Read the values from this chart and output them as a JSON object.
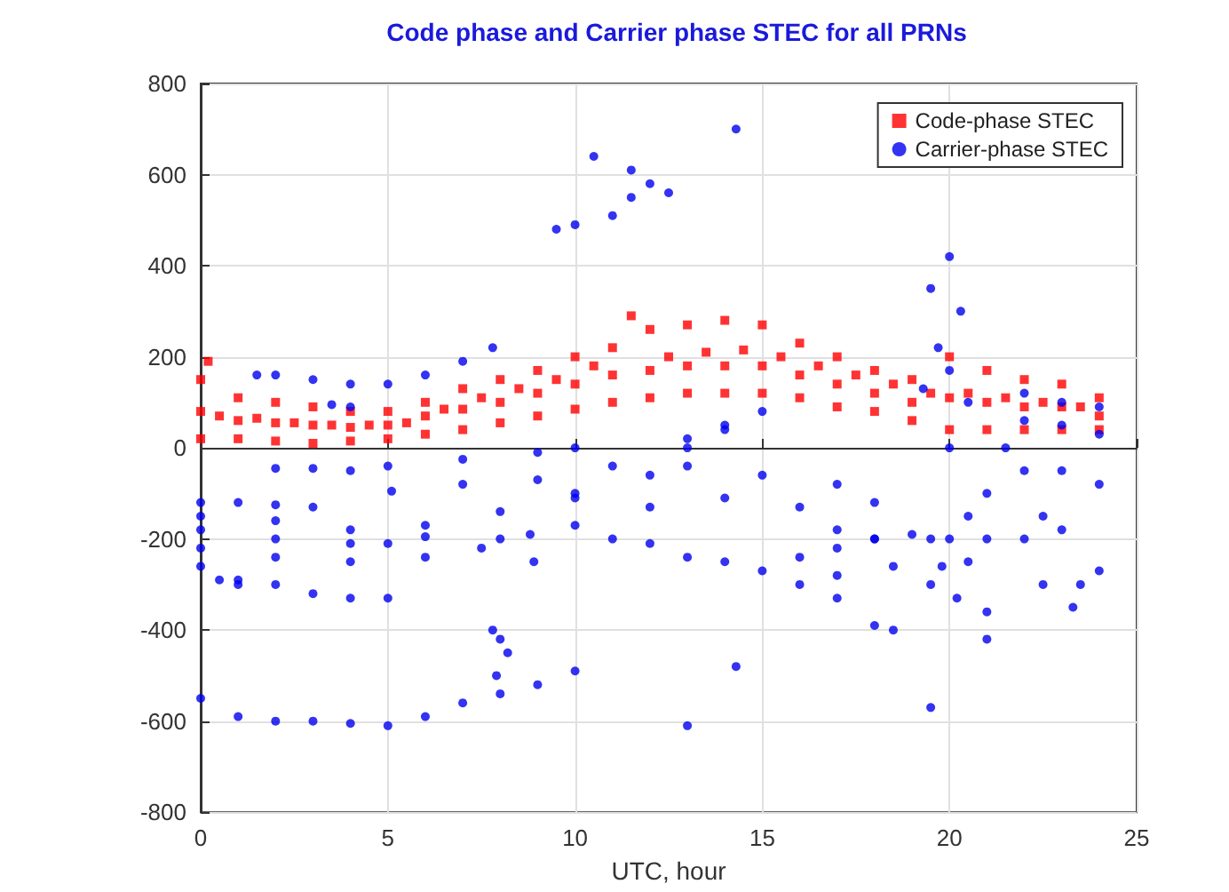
{
  "chart_data": {
    "type": "scatter",
    "title": "Code phase and Carrier phase STEC for all PRNs",
    "xlabel": "UTC, hour",
    "xlim": [
      0,
      25
    ],
    "xticks": [
      0,
      5,
      10,
      15,
      20,
      25
    ],
    "ylim": [
      -800,
      800
    ],
    "yticks": [
      -800,
      -600,
      -400,
      -200,
      0,
      200,
      400,
      600,
      800
    ],
    "grid": true,
    "legend": "top right",
    "series": [
      {
        "name": "Code-phase STEC",
        "color": "#ff0000",
        "marker": "square",
        "x": [
          0,
          0,
          0,
          0.2,
          1,
          1,
          1,
          2,
          2,
          2,
          3,
          3,
          3,
          4,
          4,
          4,
          5,
          5,
          5,
          6,
          6,
          6,
          7,
          7,
          7,
          8,
          8,
          8,
          9,
          9,
          9,
          10,
          10,
          10,
          11,
          11,
          11,
          11.5,
          12,
          12,
          12,
          13,
          13,
          13,
          14,
          14,
          14,
          15,
          15,
          15,
          16,
          16,
          16,
          17,
          17,
          17,
          18,
          18,
          18,
          19,
          19,
          19,
          20,
          20,
          20,
          21,
          21,
          21,
          22,
          22,
          22,
          23,
          23,
          23,
          24,
          24,
          24,
          0.5,
          1.5,
          2.5,
          3.5,
          4.5,
          5.5,
          6.5,
          7.5,
          8.5,
          9.5,
          10.5,
          12.5,
          13.5,
          14.5,
          15.5,
          16.5,
          17.5,
          18.5,
          19.5,
          20.5,
          21.5,
          22.5,
          23.5
        ],
        "values": [
          20,
          80,
          150,
          190,
          20,
          60,
          110,
          15,
          55,
          100,
          10,
          50,
          90,
          15,
          45,
          80,
          20,
          50,
          80,
          30,
          70,
          100,
          40,
          85,
          130,
          55,
          100,
          150,
          70,
          120,
          170,
          85,
          140,
          200,
          100,
          160,
          220,
          290,
          110,
          170,
          260,
          120,
          180,
          270,
          120,
          180,
          280,
          120,
          180,
          270,
          110,
          160,
          230,
          90,
          140,
          200,
          80,
          120,
          170,
          60,
          100,
          150,
          40,
          110,
          200,
          40,
          100,
          170,
          40,
          90,
          150,
          40,
          90,
          140,
          40,
          70,
          110,
          70,
          65,
          55,
          50,
          50,
          55,
          85,
          110,
          130,
          150,
          180,
          200,
          210,
          215,
          200,
          180,
          160,
          140,
          120,
          120,
          110,
          100,
          90
        ]
      },
      {
        "name": "Carrier-phase STEC",
        "color": "#0000ee",
        "marker": "circle",
        "x": [
          9.5,
          10,
          11,
          11.5,
          12,
          12.5,
          10.5,
          11.5,
          14.3,
          1.5,
          2,
          3,
          4,
          5,
          6,
          7,
          7.8,
          3.5,
          4,
          0,
          1,
          2,
          3,
          4,
          5,
          6,
          7,
          8,
          9,
          10,
          0,
          1,
          2,
          3,
          0,
          2,
          4,
          6,
          8,
          10,
          12,
          13,
          14,
          15,
          2,
          3,
          4,
          5,
          7,
          9,
          10,
          5.1,
          7,
          9,
          11,
          13,
          14,
          0,
          2,
          4,
          5,
          6,
          0,
          2,
          4,
          6,
          7.5,
          8,
          0,
          1,
          2,
          3,
          4,
          5,
          0.5,
          1,
          10,
          12,
          14,
          16,
          17,
          18,
          18.5,
          11,
          13,
          15,
          17,
          18.5,
          19.5,
          20,
          12,
          14,
          16,
          17,
          18,
          10,
          13,
          15,
          17,
          18,
          16,
          17,
          18,
          19,
          8.8,
          8.9,
          7.8,
          8,
          8.2,
          7.9,
          13,
          14.3,
          19.5,
          21,
          21,
          19.5,
          20,
          20.3,
          19.7,
          20,
          19.3,
          20.5,
          20,
          20.5,
          21,
          20.5,
          21,
          22,
          22.5,
          23,
          24,
          23.5,
          22,
          23,
          24,
          22,
          23,
          24,
          21.5,
          22,
          23,
          24,
          22.5,
          23.3,
          20.2,
          19.8,
          19.5
        ],
        "values": [
          480,
          490,
          510,
          550,
          580,
          560,
          640,
          610,
          700,
          160,
          160,
          150,
          140,
          140,
          160,
          190,
          220,
          95,
          90,
          -550,
          -590,
          -600,
          -600,
          -605,
          -610,
          -590,
          -560,
          -540,
          -520,
          -490,
          -120,
          -120,
          -125,
          -130,
          -150,
          -160,
          -180,
          -170,
          -140,
          -110,
          -60,
          0,
          40,
          80,
          -45,
          -45,
          -50,
          -40,
          -25,
          -10,
          0,
          -95,
          -80,
          -70,
          -40,
          20,
          50,
          -180,
          -200,
          -210,
          -210,
          -195,
          -220,
          -240,
          -250,
          -240,
          -220,
          -200,
          -260,
          -290,
          -300,
          -320,
          -330,
          -330,
          -290,
          -300,
          -170,
          -210,
          -250,
          -300,
          -330,
          -390,
          -400,
          -200,
          -240,
          -270,
          -280,
          -260,
          -200,
          -200,
          -130,
          -110,
          -130,
          -180,
          -200,
          -100,
          -40,
          -60,
          -80,
          -120,
          -240,
          -220,
          -200,
          -190,
          -190,
          -250,
          -400,
          -420,
          -450,
          -500,
          -610,
          -480,
          -570,
          -360,
          -420,
          350,
          420,
          300,
          220,
          170,
          130,
          100,
          0,
          -150,
          -200,
          -250,
          -100,
          -200,
          -150,
          -180,
          -270,
          -300,
          -50,
          -50,
          -80,
          120,
          100,
          90,
          0,
          60,
          50,
          30,
          -300,
          -350,
          -330,
          -260,
          -300
        ]
      }
    ]
  }
}
